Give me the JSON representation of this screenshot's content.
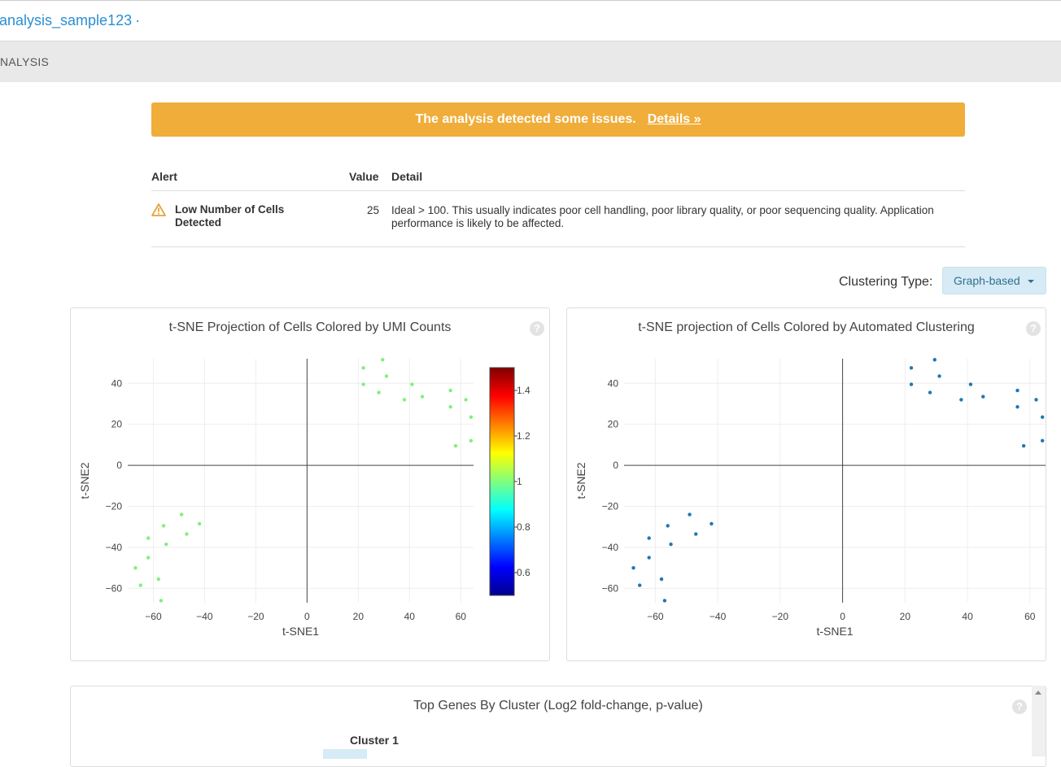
{
  "header": {
    "sample_name": "analysis_sample123",
    "separator": "·"
  },
  "tabs": {
    "active": "NALYSIS"
  },
  "banner": {
    "text": "The analysis detected some issues.",
    "link": "Details »",
    "color": "#f0ad3a"
  },
  "alerts": {
    "headers": {
      "alert": "Alert",
      "value": "Value",
      "detail": "Detail"
    },
    "rows": [
      {
        "name": "Low Number of Cells Detected",
        "value": "25",
        "detail": "Ideal > 100. This usually indicates poor cell handling, poor library quality, or poor sequencing quality. Application performance is likely to be affected."
      }
    ]
  },
  "clustering": {
    "label": "Clustering Type:",
    "selected": "Graph-based"
  },
  "chart_data": [
    {
      "type": "scatter",
      "title": "t-SNE Projection of Cells Colored by UMI Counts",
      "xlabel": "t-SNE1",
      "ylabel": "t-SNE2",
      "xlim": [
        -70,
        65
      ],
      "ylim": [
        -67,
        52
      ],
      "xticks": [
        "−60",
        "−40",
        "−20",
        "0",
        "20",
        "40",
        "60"
      ],
      "yticks": [
        "40",
        "20",
        "0",
        "−20",
        "−40",
        "−60"
      ],
      "point_color": "#7ef07e",
      "colorbar": {
        "ticks": [
          "1.4",
          "1.2",
          "1",
          "0.8",
          "0.6"
        ],
        "range": [
          0.5,
          1.5
        ]
      },
      "points": [
        [
          22,
          47.5
        ],
        [
          22,
          39.5
        ],
        [
          28,
          35.5
        ],
        [
          29.5,
          51.5
        ],
        [
          31,
          43.5
        ],
        [
          38,
          32
        ],
        [
          41,
          39.5
        ],
        [
          45,
          33.5
        ],
        [
          56,
          36.5
        ],
        [
          56,
          28.5
        ],
        [
          58,
          9.5
        ],
        [
          62,
          32
        ],
        [
          64,
          23.5
        ],
        [
          64,
          12
        ],
        [
          -62,
          -35.5
        ],
        [
          -62,
          -45
        ],
        [
          -56,
          -29.5
        ],
        [
          -55,
          -38.5
        ],
        [
          -49,
          -24
        ],
        [
          -47,
          -33.5
        ],
        [
          -42,
          -28.5
        ],
        [
          -67,
          -50
        ],
        [
          -65,
          -58.5
        ],
        [
          -58,
          -55.5
        ],
        [
          -57,
          -66
        ]
      ]
    },
    {
      "type": "scatter",
      "title": "t-SNE projection of Cells Colored by Automated Clustering",
      "xlabel": "t-SNE1",
      "ylabel": "t-SNE2",
      "xlim": [
        -70,
        65
      ],
      "ylim": [
        -67,
        52
      ],
      "xticks": [
        "−60",
        "−40",
        "−20",
        "0",
        "20",
        "40",
        "60"
      ],
      "yticks": [
        "40",
        "20",
        "0",
        "−20",
        "−40",
        "−60"
      ],
      "point_color": "#1f77b4",
      "points": [
        [
          22,
          47.5
        ],
        [
          22,
          39.5
        ],
        [
          28,
          35.5
        ],
        [
          29.5,
          51.5
        ],
        [
          31,
          43.5
        ],
        [
          38,
          32
        ],
        [
          41,
          39.5
        ],
        [
          45,
          33.5
        ],
        [
          56,
          36.5
        ],
        [
          56,
          28.5
        ],
        [
          58,
          9.5
        ],
        [
          62,
          32
        ],
        [
          64,
          23.5
        ],
        [
          64,
          12
        ],
        [
          -62,
          -35.5
        ],
        [
          -62,
          -45
        ],
        [
          -56,
          -29.5
        ],
        [
          -55,
          -38.5
        ],
        [
          -49,
          -24
        ],
        [
          -47,
          -33.5
        ],
        [
          -42,
          -28.5
        ],
        [
          -67,
          -50
        ],
        [
          -65,
          -58.5
        ],
        [
          -58,
          -55.5
        ],
        [
          -57,
          -66
        ]
      ]
    }
  ],
  "genes_panel": {
    "title": "Top Genes By Cluster (Log2 fold-change, p-value)",
    "cluster_header": "Cluster 1"
  },
  "help_icon": "?"
}
